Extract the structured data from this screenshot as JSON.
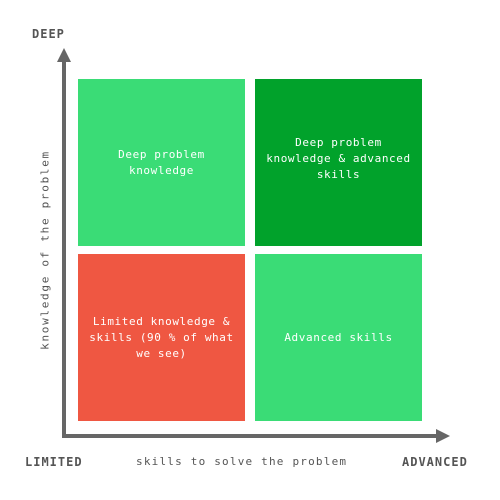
{
  "axes": {
    "y_top_label": "DEEP",
    "x_left_label": "LIMITED",
    "x_right_label": "ADVANCED",
    "x_title": "skills to solve the problem",
    "y_title": "knowledge of the problem"
  },
  "quadrants": {
    "top_left": "Deep problem knowledge",
    "top_right": "Deep problem knowledge & advanced skills",
    "bottom_left": "Limited knowledge & skills (90 % of what we see)",
    "bottom_right": "Advanced skills"
  },
  "colors": {
    "light_green": "#3adc76",
    "dark_green": "#01a22b",
    "red": "#ef5742",
    "axis": "#666666"
  }
}
